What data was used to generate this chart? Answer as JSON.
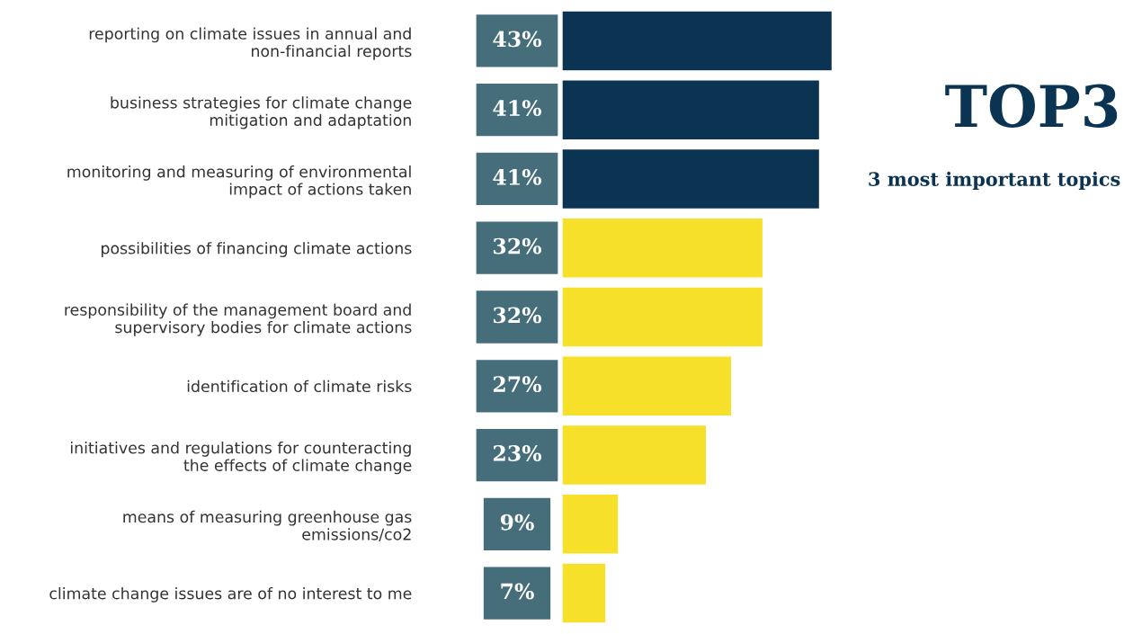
{
  "chart_data": {
    "type": "bar",
    "orientation": "horizontal",
    "categories": [
      "reporting on climate issues in annual and\nnon-financial reports",
      "business strategies for climate change\nmitigation and adaptation",
      "monitoring and measuring of environmental\nimpact of actions taken",
      "possibilities of financing climate actions",
      "responsibility of the management board and\nsupervisory bodies for climate actions",
      "identification of climate risks",
      "initiatives and regulations for counteracting\nthe effects of climate change",
      "means of measuring greenhouse gas\nemissions/co2",
      "climate change issues are of no interest to me"
    ],
    "values": [
      43,
      41,
      41,
      32,
      32,
      27,
      23,
      9,
      7
    ],
    "colors": [
      "#0b3352",
      "#0b3352",
      "#0b3352",
      "#f7e02a",
      "#f7e02a",
      "#f7e02a",
      "#f7e02a",
      "#f7e02a",
      "#f7e02a"
    ],
    "value_labels": [
      "43%",
      "41%",
      "41%",
      "32%",
      "32%",
      "27%",
      "23%",
      "9%",
      "7%"
    ],
    "annotations": [
      "TOP3",
      "3 most important topics"
    ],
    "grid": false,
    "legend": false,
    "tick_labels": "y"
  }
}
